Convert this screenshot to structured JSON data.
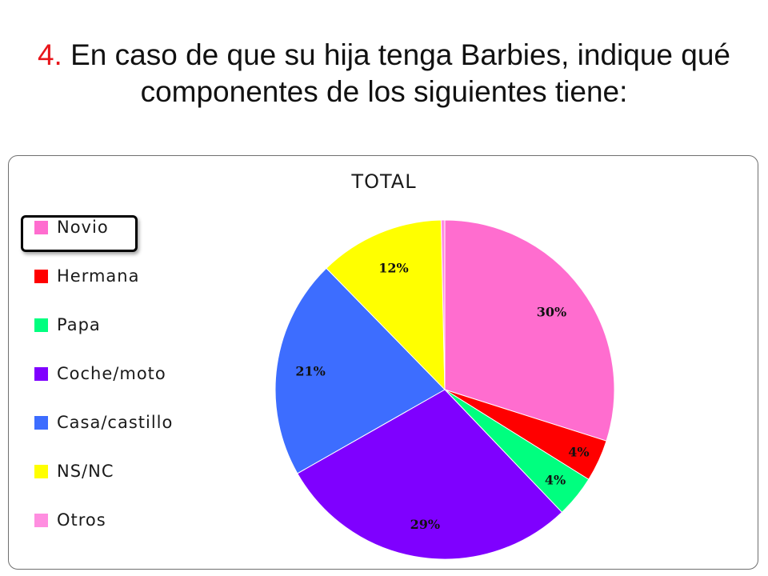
{
  "slide": {
    "title_number": "4.",
    "title_text": " En caso de que su hija tenga Barbies, indique qué componentes de los siguientes tiene:"
  },
  "chart_data": {
    "type": "pie",
    "title": "TOTAL",
    "legend_position": "left",
    "highlighted_legend_item": "Novio",
    "categories": [
      "Novio",
      "Hermana",
      "Papa",
      "Coche/moto",
      "Casa/castillo",
      "NS/NC",
      "Otros"
    ],
    "values": [
      30,
      4,
      4,
      29,
      21,
      12,
      0
    ],
    "labels": [
      "30%",
      "4%",
      "4%",
      "29%",
      "21%",
      "12%",
      ""
    ],
    "colors": [
      "#ff6dcf",
      "#ff0000",
      "#00ff7f",
      "#7f00ff",
      "#3d6dff",
      "#ffff00",
      "#ff8ee0"
    ]
  }
}
